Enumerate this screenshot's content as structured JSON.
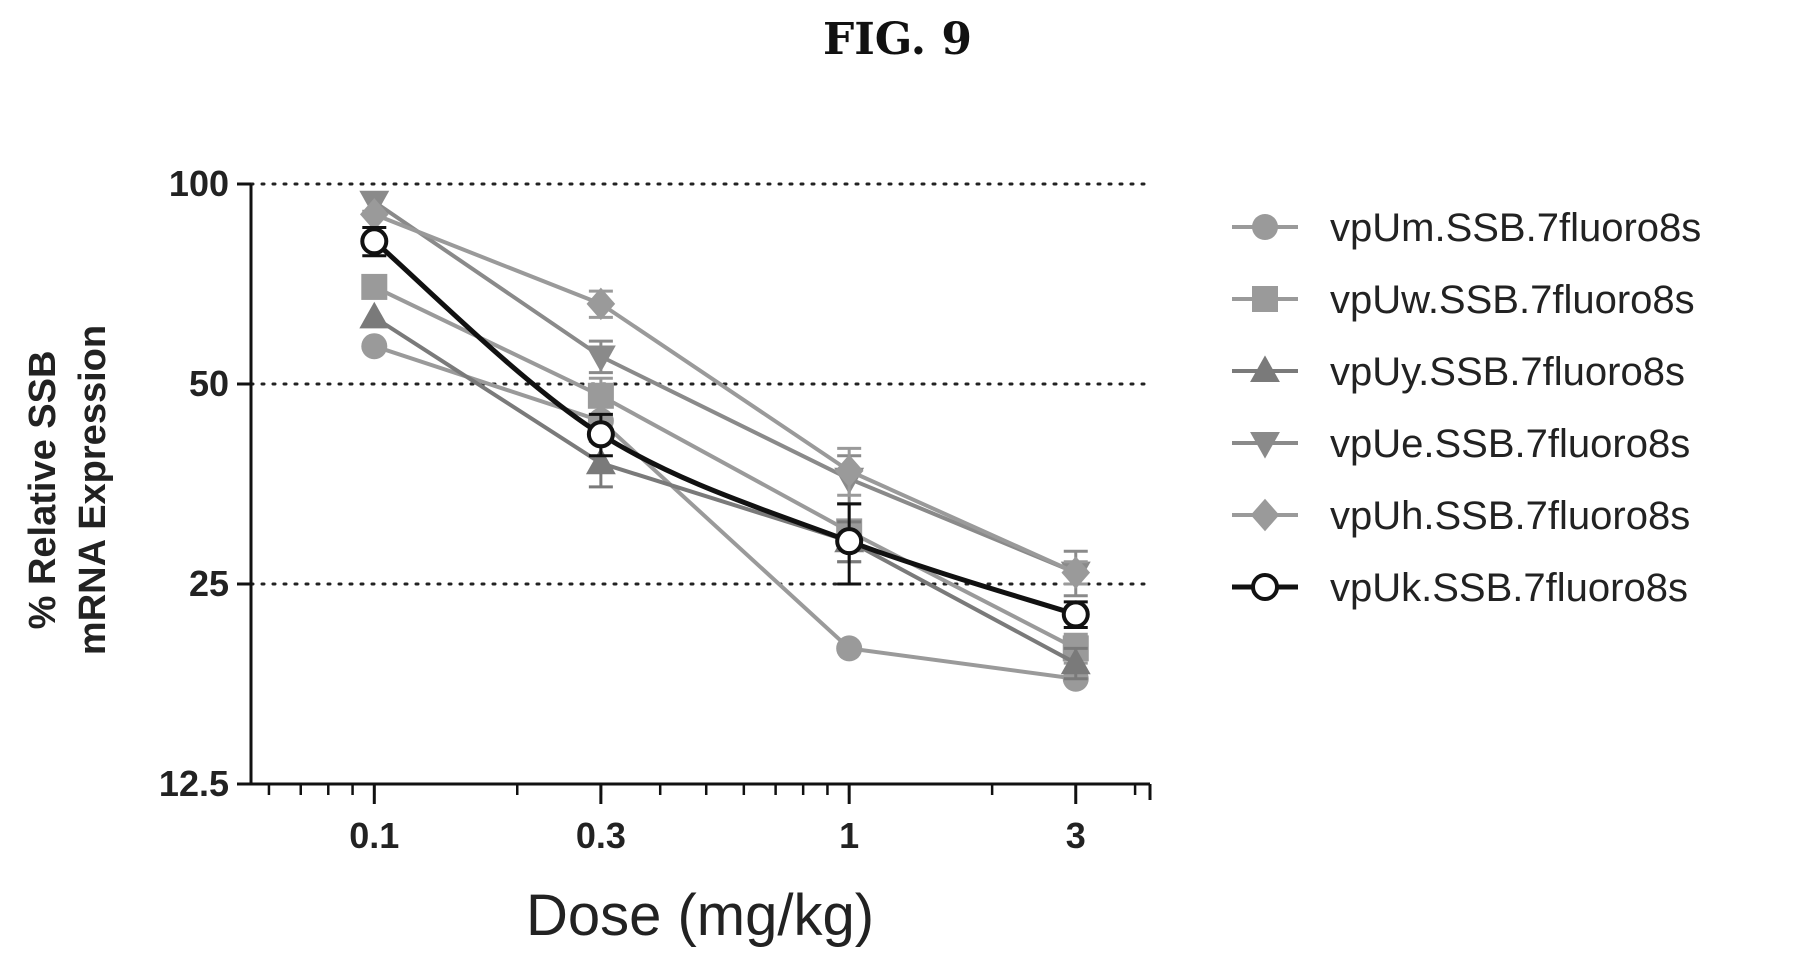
{
  "figure_label": "FIG. 9",
  "chart_data": {
    "type": "line",
    "title": "",
    "xlabel": "Dose (mg/kg)",
    "ylabel_line1": "% Relative SSB",
    "ylabel_line2": "mRNA Expression",
    "x_scale": "log",
    "y_scale": "log2",
    "xlim": [
      0.055,
      4.3
    ],
    "ylim": [
      12.5,
      100
    ],
    "x_ticks": [
      0.1,
      0.3,
      1,
      3
    ],
    "x_tick_labels": [
      "0.1",
      "0.3",
      "1",
      "3"
    ],
    "y_ticks": [
      12.5,
      25,
      50,
      100
    ],
    "y_tick_labels": [
      "12.5",
      "25",
      "50",
      "100"
    ],
    "gridlines_y": [
      25,
      50,
      100
    ],
    "legend_position": "right",
    "x": [
      0.1,
      0.3,
      1,
      3
    ],
    "series": [
      {
        "name": "vpUm.SSB.7fluoro8s",
        "marker": "circle",
        "color": "#9a9a9a",
        "values": [
          57,
          44,
          20,
          18
        ]
      },
      {
        "name": "vpUw.SSB.7fluoro8s",
        "marker": "square",
        "color": "#9a9a9a",
        "values": [
          70,
          48,
          30,
          20
        ],
        "errors": [
          0,
          3,
          3,
          1
        ]
      },
      {
        "name": "vpUy.SSB.7fluoro8s",
        "marker": "triangle-up",
        "color": "#7a7a7a",
        "values": [
          63,
          38,
          29,
          19
        ],
        "errors": [
          0,
          3,
          2,
          1
        ]
      },
      {
        "name": "vpUe.SSB.7fluoro8s",
        "marker": "triangle-down",
        "color": "#8a8a8a",
        "values": [
          94,
          55,
          36,
          26
        ],
        "errors": [
          3,
          3,
          3,
          2
        ]
      },
      {
        "name": "vpUh.SSB.7fluoro8s",
        "marker": "diamond",
        "color": "#9a9a9a",
        "values": [
          90,
          66,
          37,
          26
        ],
        "errors": [
          0,
          3,
          3,
          1
        ]
      },
      {
        "name": "vpUk.SSB.7fluoro8s",
        "marker": "open-circle",
        "color": "#111111",
        "values": [
          82,
          42,
          29,
          22.5
        ],
        "errors": [
          4,
          3,
          4,
          1
        ]
      }
    ]
  }
}
